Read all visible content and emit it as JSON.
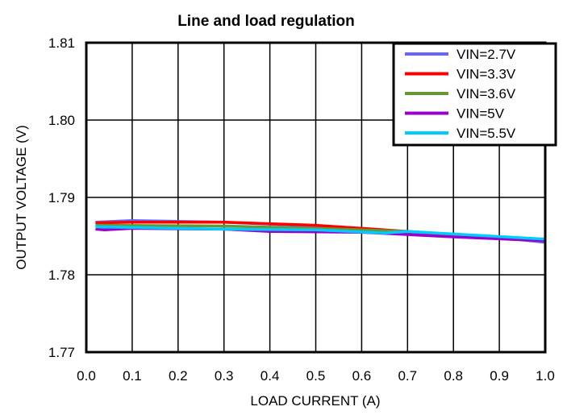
{
  "chart_data": {
    "type": "line",
    "title": "Line and load regulation",
    "xlabel": "LOAD CURRENT (A)",
    "ylabel": "OUTPUT VOLTAGE (V)",
    "xlim": [
      0.0,
      1.0
    ],
    "ylim": [
      1.77,
      1.81
    ],
    "xticks": [
      "0.0",
      "0.1",
      "0.2",
      "0.3",
      "0.4",
      "0.5",
      "0.6",
      "0.7",
      "0.8",
      "0.9",
      "1.0"
    ],
    "yticks": [
      "1.77",
      "1.78",
      "1.79",
      "1.80",
      "1.81"
    ],
    "grid": true,
    "legend_placement": "top-right",
    "series": [
      {
        "name": "VIN=2.7V",
        "color": "#6666ff",
        "x": [
          0.02,
          0.1,
          0.3,
          0.5,
          0.7,
          0.9,
          1.0
        ],
        "y": [
          1.7868,
          1.787,
          1.7868,
          1.7863,
          1.7855,
          1.7848,
          1.7842
        ]
      },
      {
        "name": "VIN=3.3V",
        "color": "#ff0000",
        "x": [
          0.02,
          0.1,
          0.3,
          0.5,
          0.6,
          0.7,
          0.8,
          1.0
        ],
        "y": [
          1.7867,
          1.7868,
          1.7868,
          1.7864,
          1.786,
          1.7856,
          1.7852,
          1.7845
        ]
      },
      {
        "name": "VIN=3.6V",
        "color": "#669933",
        "x": [
          0.02,
          0.3,
          0.5,
          0.7,
          1.0
        ],
        "y": [
          1.7864,
          1.7863,
          1.786,
          1.7856,
          1.7845
        ]
      },
      {
        "name": "VIN=5V",
        "color": "#9900cc",
        "x": [
          0.02,
          0.04,
          0.1,
          0.3,
          0.4,
          0.6,
          0.8,
          1.0
        ],
        "y": [
          1.7859,
          1.7858,
          1.786,
          1.7859,
          1.7856,
          1.7855,
          1.7849,
          1.7844
        ]
      },
      {
        "name": "VIN=5.5V",
        "color": "#00ccff",
        "x": [
          0.02,
          0.3,
          0.5,
          0.65,
          0.7,
          1.0
        ],
        "y": [
          1.7862,
          1.7859,
          1.7858,
          1.7854,
          1.7856,
          1.7846
        ]
      }
    ]
  }
}
